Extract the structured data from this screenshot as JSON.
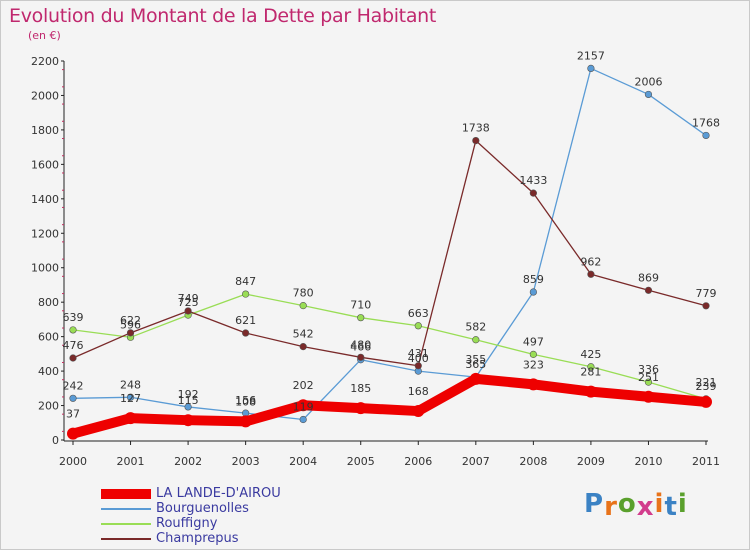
{
  "title": "Evolution du Montant de la Dette par Habitant",
  "unit_label": "(en €)",
  "logo_text": "Proxiti",
  "chart_data": {
    "type": "line",
    "x": [
      "2000",
      "2001",
      "2002",
      "2003",
      "2004",
      "2005",
      "2006",
      "2007",
      "2008",
      "2009",
      "2010",
      "2011"
    ],
    "ylim": [
      0,
      2200
    ],
    "yticks": [
      0,
      200,
      400,
      600,
      800,
      1000,
      1200,
      1400,
      1600,
      1800,
      2000,
      2200
    ],
    "grid": false,
    "legend_position": "bottom-left",
    "series": [
      {
        "name": "LA LANDE-D'AIROU",
        "color": "#ee0000",
        "values": [
          37,
          127,
          115,
          108,
          202,
          185,
          168,
          355,
          323,
          281,
          251,
          221
        ]
      },
      {
        "name": "Bourguenolles",
        "color": "#5a9bd5",
        "values": [
          242,
          248,
          192,
          156,
          119,
          466,
          400,
          365,
          859,
          2157,
          2006,
          1768
        ]
      },
      {
        "name": "Rouffigny",
        "color": "#99dd55",
        "values": [
          639,
          596,
          725,
          847,
          780,
          710,
          663,
          582,
          497,
          425,
          336,
          239
        ]
      },
      {
        "name": "Champrepus",
        "color": "#7a2a2a",
        "values": [
          476,
          622,
          749,
          621,
          542,
          480,
          431,
          1738,
          1433,
          962,
          869,
          779
        ]
      }
    ]
  }
}
